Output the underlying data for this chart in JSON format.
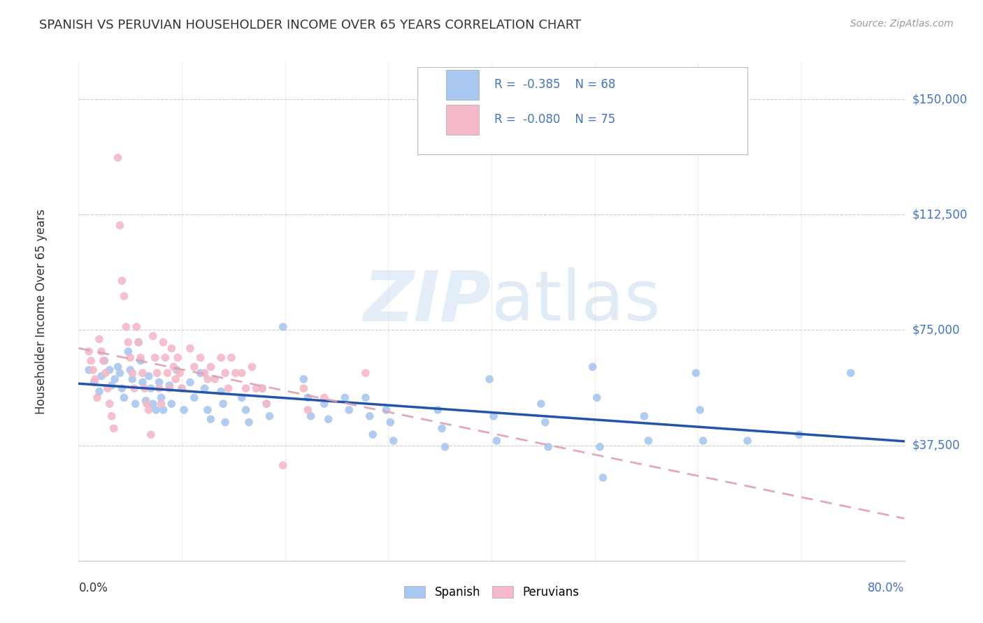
{
  "title": "SPANISH VS PERUVIAN HOUSEHOLDER INCOME OVER 65 YEARS CORRELATION CHART",
  "source": "Source: ZipAtlas.com",
  "xlabel_start": "0.0%",
  "xlabel_end": "80.0%",
  "ylabel": "Householder Income Over 65 years",
  "ytick_labels": [
    "$37,500",
    "$75,000",
    "$112,500",
    "$150,000"
  ],
  "ytick_values": [
    37500,
    75000,
    112500,
    150000
  ],
  "xlim": [
    0.0,
    0.8
  ],
  "ylim": [
    0,
    162000
  ],
  "spanish_color": "#a8c8f0",
  "peruvian_color": "#f4b8c8",
  "spanish_line_color": "#2255aa",
  "peruvian_line_color": "#dda0b0",
  "label_color": "#4472c4",
  "text_color": "#333333",
  "grid_color": "#cccccc",
  "spanish_scatter": [
    [
      0.01,
      62000
    ],
    [
      0.015,
      58000
    ],
    [
      0.02,
      55000
    ],
    [
      0.022,
      60000
    ],
    [
      0.025,
      65000
    ],
    [
      0.03,
      62000
    ],
    [
      0.032,
      57000
    ],
    [
      0.035,
      59000
    ],
    [
      0.038,
      63000
    ],
    [
      0.04,
      61000
    ],
    [
      0.042,
      56000
    ],
    [
      0.044,
      53000
    ],
    [
      0.048,
      68000
    ],
    [
      0.05,
      62000
    ],
    [
      0.052,
      59000
    ],
    [
      0.055,
      51000
    ],
    [
      0.058,
      71000
    ],
    [
      0.06,
      65000
    ],
    [
      0.062,
      58000
    ],
    [
      0.065,
      52000
    ],
    [
      0.068,
      60000
    ],
    [
      0.07,
      56000
    ],
    [
      0.072,
      51000
    ],
    [
      0.075,
      49000
    ],
    [
      0.078,
      58000
    ],
    [
      0.08,
      53000
    ],
    [
      0.082,
      49000
    ],
    [
      0.088,
      57000
    ],
    [
      0.09,
      51000
    ],
    [
      0.095,
      62000
    ],
    [
      0.1,
      56000
    ],
    [
      0.102,
      49000
    ],
    [
      0.108,
      58000
    ],
    [
      0.112,
      53000
    ],
    [
      0.118,
      61000
    ],
    [
      0.122,
      56000
    ],
    [
      0.125,
      49000
    ],
    [
      0.128,
      46000
    ],
    [
      0.138,
      55000
    ],
    [
      0.14,
      51000
    ],
    [
      0.142,
      45000
    ],
    [
      0.158,
      53000
    ],
    [
      0.162,
      49000
    ],
    [
      0.165,
      45000
    ],
    [
      0.178,
      56000
    ],
    [
      0.182,
      51000
    ],
    [
      0.185,
      47000
    ],
    [
      0.198,
      76000
    ],
    [
      0.218,
      59000
    ],
    [
      0.222,
      53000
    ],
    [
      0.225,
      47000
    ],
    [
      0.238,
      51000
    ],
    [
      0.242,
      46000
    ],
    [
      0.258,
      53000
    ],
    [
      0.262,
      49000
    ],
    [
      0.278,
      53000
    ],
    [
      0.282,
      47000
    ],
    [
      0.285,
      41000
    ],
    [
      0.298,
      49000
    ],
    [
      0.302,
      45000
    ],
    [
      0.305,
      39000
    ],
    [
      0.348,
      49000
    ],
    [
      0.352,
      43000
    ],
    [
      0.355,
      37000
    ],
    [
      0.398,
      59000
    ],
    [
      0.402,
      47000
    ],
    [
      0.405,
      39000
    ],
    [
      0.448,
      51000
    ],
    [
      0.452,
      45000
    ],
    [
      0.455,
      37000
    ],
    [
      0.498,
      63000
    ],
    [
      0.502,
      53000
    ],
    [
      0.505,
      37000
    ],
    [
      0.508,
      27000
    ],
    [
      0.548,
      47000
    ],
    [
      0.552,
      39000
    ],
    [
      0.598,
      61000
    ],
    [
      0.602,
      49000
    ],
    [
      0.605,
      39000
    ],
    [
      0.648,
      39000
    ],
    [
      0.698,
      41000
    ],
    [
      0.748,
      61000
    ]
  ],
  "peruvian_scatter": [
    [
      0.01,
      68000
    ],
    [
      0.012,
      65000
    ],
    [
      0.014,
      62000
    ],
    [
      0.016,
      59000
    ],
    [
      0.018,
      53000
    ],
    [
      0.02,
      72000
    ],
    [
      0.022,
      68000
    ],
    [
      0.024,
      65000
    ],
    [
      0.026,
      61000
    ],
    [
      0.028,
      56000
    ],
    [
      0.03,
      51000
    ],
    [
      0.032,
      47000
    ],
    [
      0.034,
      43000
    ],
    [
      0.038,
      131000
    ],
    [
      0.04,
      109000
    ],
    [
      0.042,
      91000
    ],
    [
      0.044,
      86000
    ],
    [
      0.046,
      76000
    ],
    [
      0.048,
      71000
    ],
    [
      0.05,
      66000
    ],
    [
      0.052,
      61000
    ],
    [
      0.054,
      56000
    ],
    [
      0.056,
      76000
    ],
    [
      0.058,
      71000
    ],
    [
      0.06,
      66000
    ],
    [
      0.062,
      61000
    ],
    [
      0.064,
      56000
    ],
    [
      0.066,
      51000
    ],
    [
      0.068,
      49000
    ],
    [
      0.07,
      41000
    ],
    [
      0.072,
      73000
    ],
    [
      0.074,
      66000
    ],
    [
      0.076,
      61000
    ],
    [
      0.078,
      56000
    ],
    [
      0.08,
      51000
    ],
    [
      0.082,
      71000
    ],
    [
      0.084,
      66000
    ],
    [
      0.086,
      61000
    ],
    [
      0.088,
      56000
    ],
    [
      0.09,
      69000
    ],
    [
      0.092,
      63000
    ],
    [
      0.094,
      59000
    ],
    [
      0.096,
      66000
    ],
    [
      0.098,
      61000
    ],
    [
      0.1,
      56000
    ],
    [
      0.108,
      69000
    ],
    [
      0.112,
      63000
    ],
    [
      0.118,
      66000
    ],
    [
      0.122,
      61000
    ],
    [
      0.125,
      59000
    ],
    [
      0.128,
      63000
    ],
    [
      0.132,
      59000
    ],
    [
      0.138,
      66000
    ],
    [
      0.142,
      61000
    ],
    [
      0.145,
      56000
    ],
    [
      0.148,
      66000
    ],
    [
      0.152,
      61000
    ],
    [
      0.158,
      61000
    ],
    [
      0.162,
      56000
    ],
    [
      0.168,
      63000
    ],
    [
      0.172,
      56000
    ],
    [
      0.178,
      56000
    ],
    [
      0.182,
      51000
    ],
    [
      0.198,
      31000
    ],
    [
      0.218,
      56000
    ],
    [
      0.222,
      49000
    ],
    [
      0.238,
      53000
    ],
    [
      0.278,
      61000
    ]
  ]
}
